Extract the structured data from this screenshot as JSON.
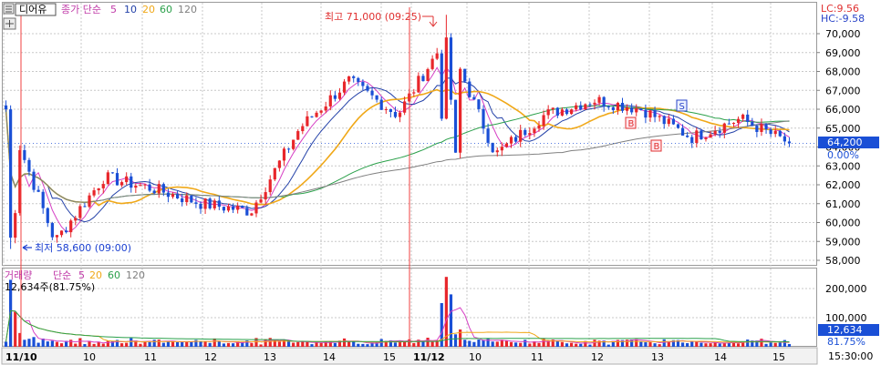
{
  "header": {
    "stock_name": "디어유",
    "price_ma_label": "종가 단순",
    "ma_periods": [
      "5",
      "10",
      "20",
      "60",
      "120"
    ],
    "lc_label": "LC:9.56",
    "hc_label": "HC:-9.58"
  },
  "volume_header": {
    "label": "거래량",
    "ma_label": "단순",
    "ma_periods": [
      "5",
      "20",
      "60",
      "120"
    ],
    "info": "12,634주(81.75%)"
  },
  "colors": {
    "up": "#e8262b",
    "down": "#1a4fd6",
    "ma5": "#d63fc4",
    "ma10": "#2341a8",
    "ma20": "#f0a818",
    "ma60": "#2aa04a",
    "ma120": "#808080",
    "grid": "#c8c8c8",
    "current_tag": "#1a4fd6"
  },
  "annotations": {
    "high_label": "최고 71,000 (09:25)",
    "low_label": "최저 58,600 (09:00)",
    "signals": [
      "B",
      "B",
      "S"
    ]
  },
  "price_tag": {
    "price": "64,200",
    "change": "0.00%"
  },
  "volume_tag": {
    "value": "12,634",
    "percent": "81.75%"
  },
  "time_tag": "15:30:00",
  "chart_data": [
    {
      "type": "candlestick",
      "title": "디어유",
      "y_axis_labels": [
        "70,000",
        "69,000",
        "68,000",
        "67,000",
        "66,000",
        "65,000",
        "64,000",
        "63,000",
        "62,000",
        "61,000",
        "60,000",
        "59,000",
        "58,000"
      ],
      "ylim": [
        57800,
        71200
      ],
      "x_axis_labels": [
        "11/10",
        "10",
        "11",
        "12",
        "13",
        "14",
        "15",
        "11/12",
        "10",
        "11",
        "12",
        "13",
        "14",
        "15"
      ],
      "days": [
        "11/10",
        "11/12"
      ],
      "high": 71000,
      "low": 58600,
      "last": 64200,
      "approx_close_path": [
        {
          "t": "11/10 09:00",
          "price": 66000
        },
        {
          "t": "11/10 09:05",
          "price": 59000
        },
        {
          "t": "11/10 10:00",
          "price": 62400
        },
        {
          "t": "11/10 11:00",
          "price": 61800
        },
        {
          "t": "11/10 12:00",
          "price": 61000
        },
        {
          "t": "11/10 13:00",
          "price": 60600
        },
        {
          "t": "11/10 14:00",
          "price": 65000
        },
        {
          "t": "11/10 14:30",
          "price": 67500
        },
        {
          "t": "11/10 15:00",
          "price": 65700
        },
        {
          "t": "11/12 09:25",
          "price": 69800
        },
        {
          "t": "11/12 09:40",
          "price": 63600
        },
        {
          "t": "11/12 10:00",
          "price": 65700
        },
        {
          "t": "11/12 11:00",
          "price": 66500
        },
        {
          "t": "11/12 12:00",
          "price": 66000
        },
        {
          "t": "11/12 13:00",
          "price": 64500
        },
        {
          "t": "11/12 14:00",
          "price": 65500
        },
        {
          "t": "11/12 15:00",
          "price": 64200
        }
      ],
      "series": [
        {
          "name": "5",
          "values": "5-period moving average"
        },
        {
          "name": "10",
          "values": "10-period moving average"
        },
        {
          "name": "20",
          "values": "20-period moving average"
        },
        {
          "name": "60",
          "values": "60-period moving average"
        },
        {
          "name": "120",
          "values": "120-period moving average"
        }
      ]
    },
    {
      "type": "bar",
      "title": "거래량",
      "y_axis_labels": [
        "200,000",
        "100,000"
      ],
      "ylim": [
        0,
        250000
      ],
      "approx_peaks": [
        {
          "t": "11/10 09:00",
          "value": 230000
        },
        {
          "t": "11/12 09:25",
          "value": 240000
        }
      ]
    }
  ]
}
